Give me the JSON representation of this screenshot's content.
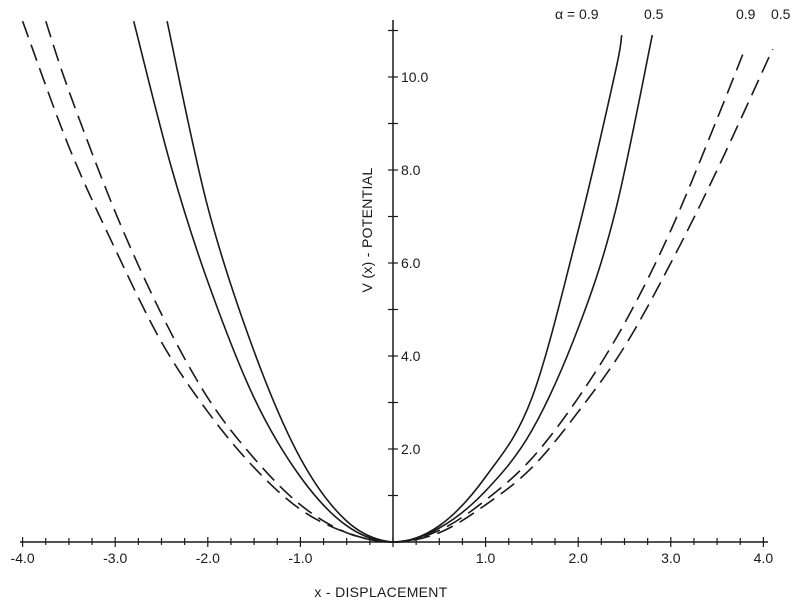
{
  "chart_data": {
    "type": "line",
    "xlabel": "x - DISPLACEMENT",
    "ylabel": "V (x) - POTENTIAL",
    "xlim": [
      -4.0,
      4.0
    ],
    "ylim": [
      0,
      11.5
    ],
    "x_tick_labels": [
      "-4.0",
      "-3.0",
      "-2.0",
      "-1.0",
      "1.0",
      "2.0",
      "3.0",
      "4.0"
    ],
    "y_tick_labels": [
      "2.0",
      "4.0",
      "6.0",
      "8.0",
      "10.0"
    ],
    "curve_labels": {
      "solid": [
        "α = 0.9",
        "0.5"
      ],
      "dashed": [
        "0.9",
        "0.5"
      ]
    },
    "series": [
      {
        "style": "solid",
        "alpha": 0.9,
        "x": [
          -2.8,
          -2.4,
          -2.0,
          -1.5,
          -1.0,
          -0.5,
          0.0,
          0.5,
          1.0,
          1.5,
          2.0,
          2.4,
          2.47
        ],
        "y": [
          11.2,
          8.1,
          5.6,
          3.1,
          1.4,
          0.35,
          0.0,
          0.35,
          1.4,
          3.1,
          6.7,
          10.1,
          10.9
        ]
      },
      {
        "style": "solid",
        "alpha": 0.5,
        "x": [
          -2.44,
          -2.0,
          -1.5,
          -1.0,
          -0.5,
          0.0,
          0.5,
          1.0,
          1.5,
          2.0,
          2.4,
          2.8
        ],
        "y": [
          11.2,
          7.2,
          4.1,
          1.8,
          0.45,
          0.0,
          0.3,
          1.1,
          2.4,
          4.6,
          7.1,
          10.9
        ]
      },
      {
        "style": "dashed",
        "alpha": 0.9,
        "x": [
          -4.0,
          -3.5,
          -3.0,
          -2.5,
          -2.0,
          -1.5,
          -1.0,
          -0.5,
          0.0,
          0.5,
          1.0,
          1.5,
          2.0,
          2.5,
          3.0,
          3.5,
          3.8
        ],
        "y": [
          11.2,
          8.5,
          6.3,
          4.3,
          2.8,
          1.6,
          0.7,
          0.2,
          0.0,
          0.25,
          0.9,
          1.8,
          3.1,
          4.7,
          6.7,
          9.1,
          10.6
        ]
      },
      {
        "style": "dashed",
        "alpha": 0.5,
        "x": [
          -3.75,
          -3.5,
          -3.0,
          -2.5,
          -2.0,
          -1.5,
          -1.0,
          -0.5,
          0.0,
          0.5,
          1.0,
          1.5,
          2.0,
          2.5,
          3.0,
          3.5,
          4.1
        ],
        "y": [
          11.2,
          9.7,
          7.1,
          4.9,
          3.1,
          1.8,
          0.8,
          0.2,
          0.0,
          0.2,
          0.8,
          1.6,
          2.8,
          4.2,
          6.0,
          8.0,
          10.6
        ]
      }
    ]
  }
}
